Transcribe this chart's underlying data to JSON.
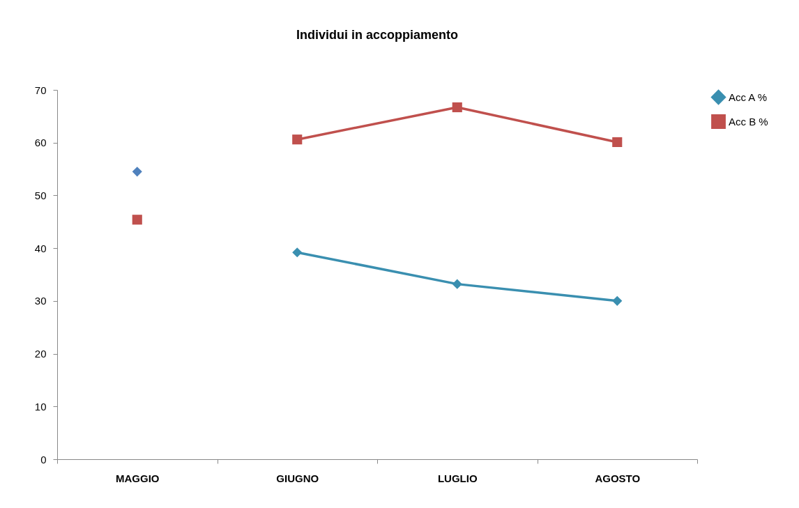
{
  "chart_data": {
    "type": "line",
    "title": "Individui in accoppiamento",
    "categories": [
      "MAGGIO",
      "GIUGNO",
      "LUGLIO",
      "AGOSTO"
    ],
    "series": [
      {
        "name": "Acc A  %",
        "color": "#3a8fb0",
        "marker": "diamond",
        "values": [
          null,
          39.2,
          33.2,
          30.0
        ]
      },
      {
        "name": "Acc B %",
        "color": "#c0504d",
        "marker": "square",
        "values": [
          null,
          60.6,
          66.7,
          60.1
        ]
      },
      {
        "type": "scatter",
        "color": "#c0504d",
        "marker": "square",
        "values": [
          45.4,
          null,
          null,
          null
        ]
      },
      {
        "type": "scatter",
        "color": "#4f81bd",
        "marker": "diamond",
        "values": [
          54.5,
          null,
          null,
          null
        ]
      }
    ],
    "ylim": [
      0,
      70
    ],
    "yticks": [
      0,
      10,
      20,
      30,
      40,
      50,
      60,
      70
    ],
    "grid": false,
    "legend": "right",
    "line_style": "solid"
  }
}
